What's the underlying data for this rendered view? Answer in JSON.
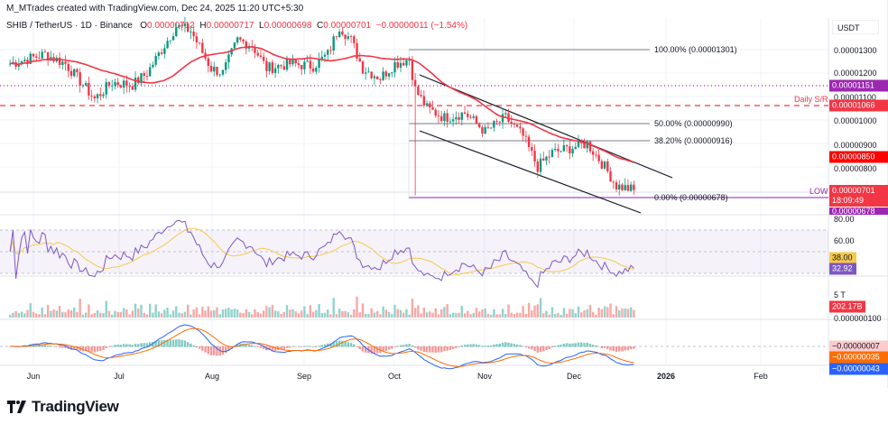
{
  "header": {
    "credit": "M_MTrades created with TradingView.com, Dec 24, 2025 11:20 UTC+5:30",
    "symbol": "SHIB / TetherUS · 1D · Binance",
    "open_label": "O",
    "open": "0.00000712",
    "high_label": "H",
    "high": "0.00000717",
    "low_label": "L",
    "low": "0.00000698",
    "close_label": "C",
    "close": "0.00000701",
    "change": "−0.00000011 (−1.54%)"
  },
  "price_axis": {
    "currency": "USDT",
    "ticks": [
      "0.00001300",
      "0.00001200",
      "0.00001100",
      "0.00001000",
      "0.00000900",
      "0.00000800"
    ],
    "badges": {
      "resistance": "0.00001151",
      "daily_sr": "0.00001066",
      "ma": "0.00000850",
      "last_price": "0.00000701",
      "countdown": "18:09:49",
      "low": "0.00000678"
    }
  },
  "annotations": {
    "daily_sr": "Daily S/R",
    "low": "LOW",
    "fib_100": "100.00% (0.00001301)",
    "fib_50": "50.00% (0.00000990)",
    "fib_382": "38.20% (0.00000916)",
    "fib_0": "0.00% (0.00000678)"
  },
  "rsi_axis": {
    "tick_80": "80.00",
    "tick_60": "60.00",
    "ma_value": "38.00",
    "rsi_value": "32.92"
  },
  "volume_axis": {
    "tick": "5 T",
    "value": "202.17B"
  },
  "macd_axis": {
    "tick": "0.000000100",
    "histogram": "−0.00000007",
    "signal": "−0.00000035",
    "macd": "−0.00000043"
  },
  "time_axis": [
    "Jun",
    "Jul",
    "Aug",
    "Sep",
    "Oct",
    "Nov",
    "Dec",
    "2026",
    "Feb"
  ],
  "brand": "TradingView",
  "colors": {
    "up": "#089981",
    "down": "#f23645",
    "ma": "#f23645",
    "fib": "#787b86",
    "purple": "#9c27b0",
    "rsi": "#7e57c2",
    "rsi_ma": "#f7c948",
    "macd": "#2962ff",
    "signal": "#ff6d00"
  },
  "chart_data": {
    "type": "candlestick",
    "interval": "1D",
    "approx_closes": [
      [
        "2025-05-24",
        1.24e-05
      ],
      [
        "2025-06-05",
        1.28e-05
      ],
      [
        "2025-06-12",
        1.24e-05
      ],
      [
        "2025-06-18",
        1.15e-05
      ],
      [
        "2025-06-22",
        1.09e-05
      ],
      [
        "2025-06-28",
        1.16e-05
      ],
      [
        "2025-07-05",
        1.15e-05
      ],
      [
        "2025-07-10",
        1.2e-05
      ],
      [
        "2025-07-15",
        1.3e-05
      ],
      [
        "2025-07-20",
        1.4e-05
      ],
      [
        "2025-07-25",
        1.38e-05
      ],
      [
        "2025-08-01",
        1.22e-05
      ],
      [
        "2025-08-05",
        1.2e-05
      ],
      [
        "2025-08-10",
        1.34e-05
      ],
      [
        "2025-08-15",
        1.32e-05
      ],
      [
        "2025-08-20",
        1.22e-05
      ],
      [
        "2025-08-28",
        1.24e-05
      ],
      [
        "2025-09-05",
        1.23e-05
      ],
      [
        "2025-09-10",
        1.28e-05
      ],
      [
        "2025-09-14",
        1.4e-05
      ],
      [
        "2025-09-18",
        1.34e-05
      ],
      [
        "2025-09-22",
        1.22e-05
      ],
      [
        "2025-09-28",
        1.18e-05
      ],
      [
        "2025-10-03",
        1.24e-05
      ],
      [
        "2025-10-08",
        1.26e-05
      ],
      [
        "2025-10-10",
        1.13e-05
      ],
      [
        "2025-10-14",
        1.05e-05
      ],
      [
        "2025-10-20",
        1.01e-05
      ],
      [
        "2025-10-27",
        1.03e-05
      ],
      [
        "2025-11-03",
        9.5e-06
      ],
      [
        "2025-11-10",
        1.01e-05
      ],
      [
        "2025-11-16",
        9.3e-06
      ],
      [
        "2025-11-21",
        8e-06
      ],
      [
        "2025-11-26",
        8.6e-06
      ],
      [
        "2025-12-02",
        8.8e-06
      ],
      [
        "2025-12-08",
        9e-06
      ],
      [
        "2025-12-14",
        8e-06
      ],
      [
        "2025-12-18",
        7.2e-06
      ],
      [
        "2025-12-24",
        7.01e-06
      ]
    ],
    "ma_last": 8.5e-06,
    "horizontal_levels": {
      "resistance": 1.151e-05,
      "daily_sr": 1.066e-05
    },
    "fibonacci": {
      "100": 1.301e-05,
      "50": 9.9e-06,
      "38.2": 9.16e-06,
      "0": 6.78e-06
    },
    "y_range": [
      6.6e-06,
      1.43e-05
    ],
    "x_range": [
      "2025-05-22",
      "2026-02-28"
    ]
  }
}
